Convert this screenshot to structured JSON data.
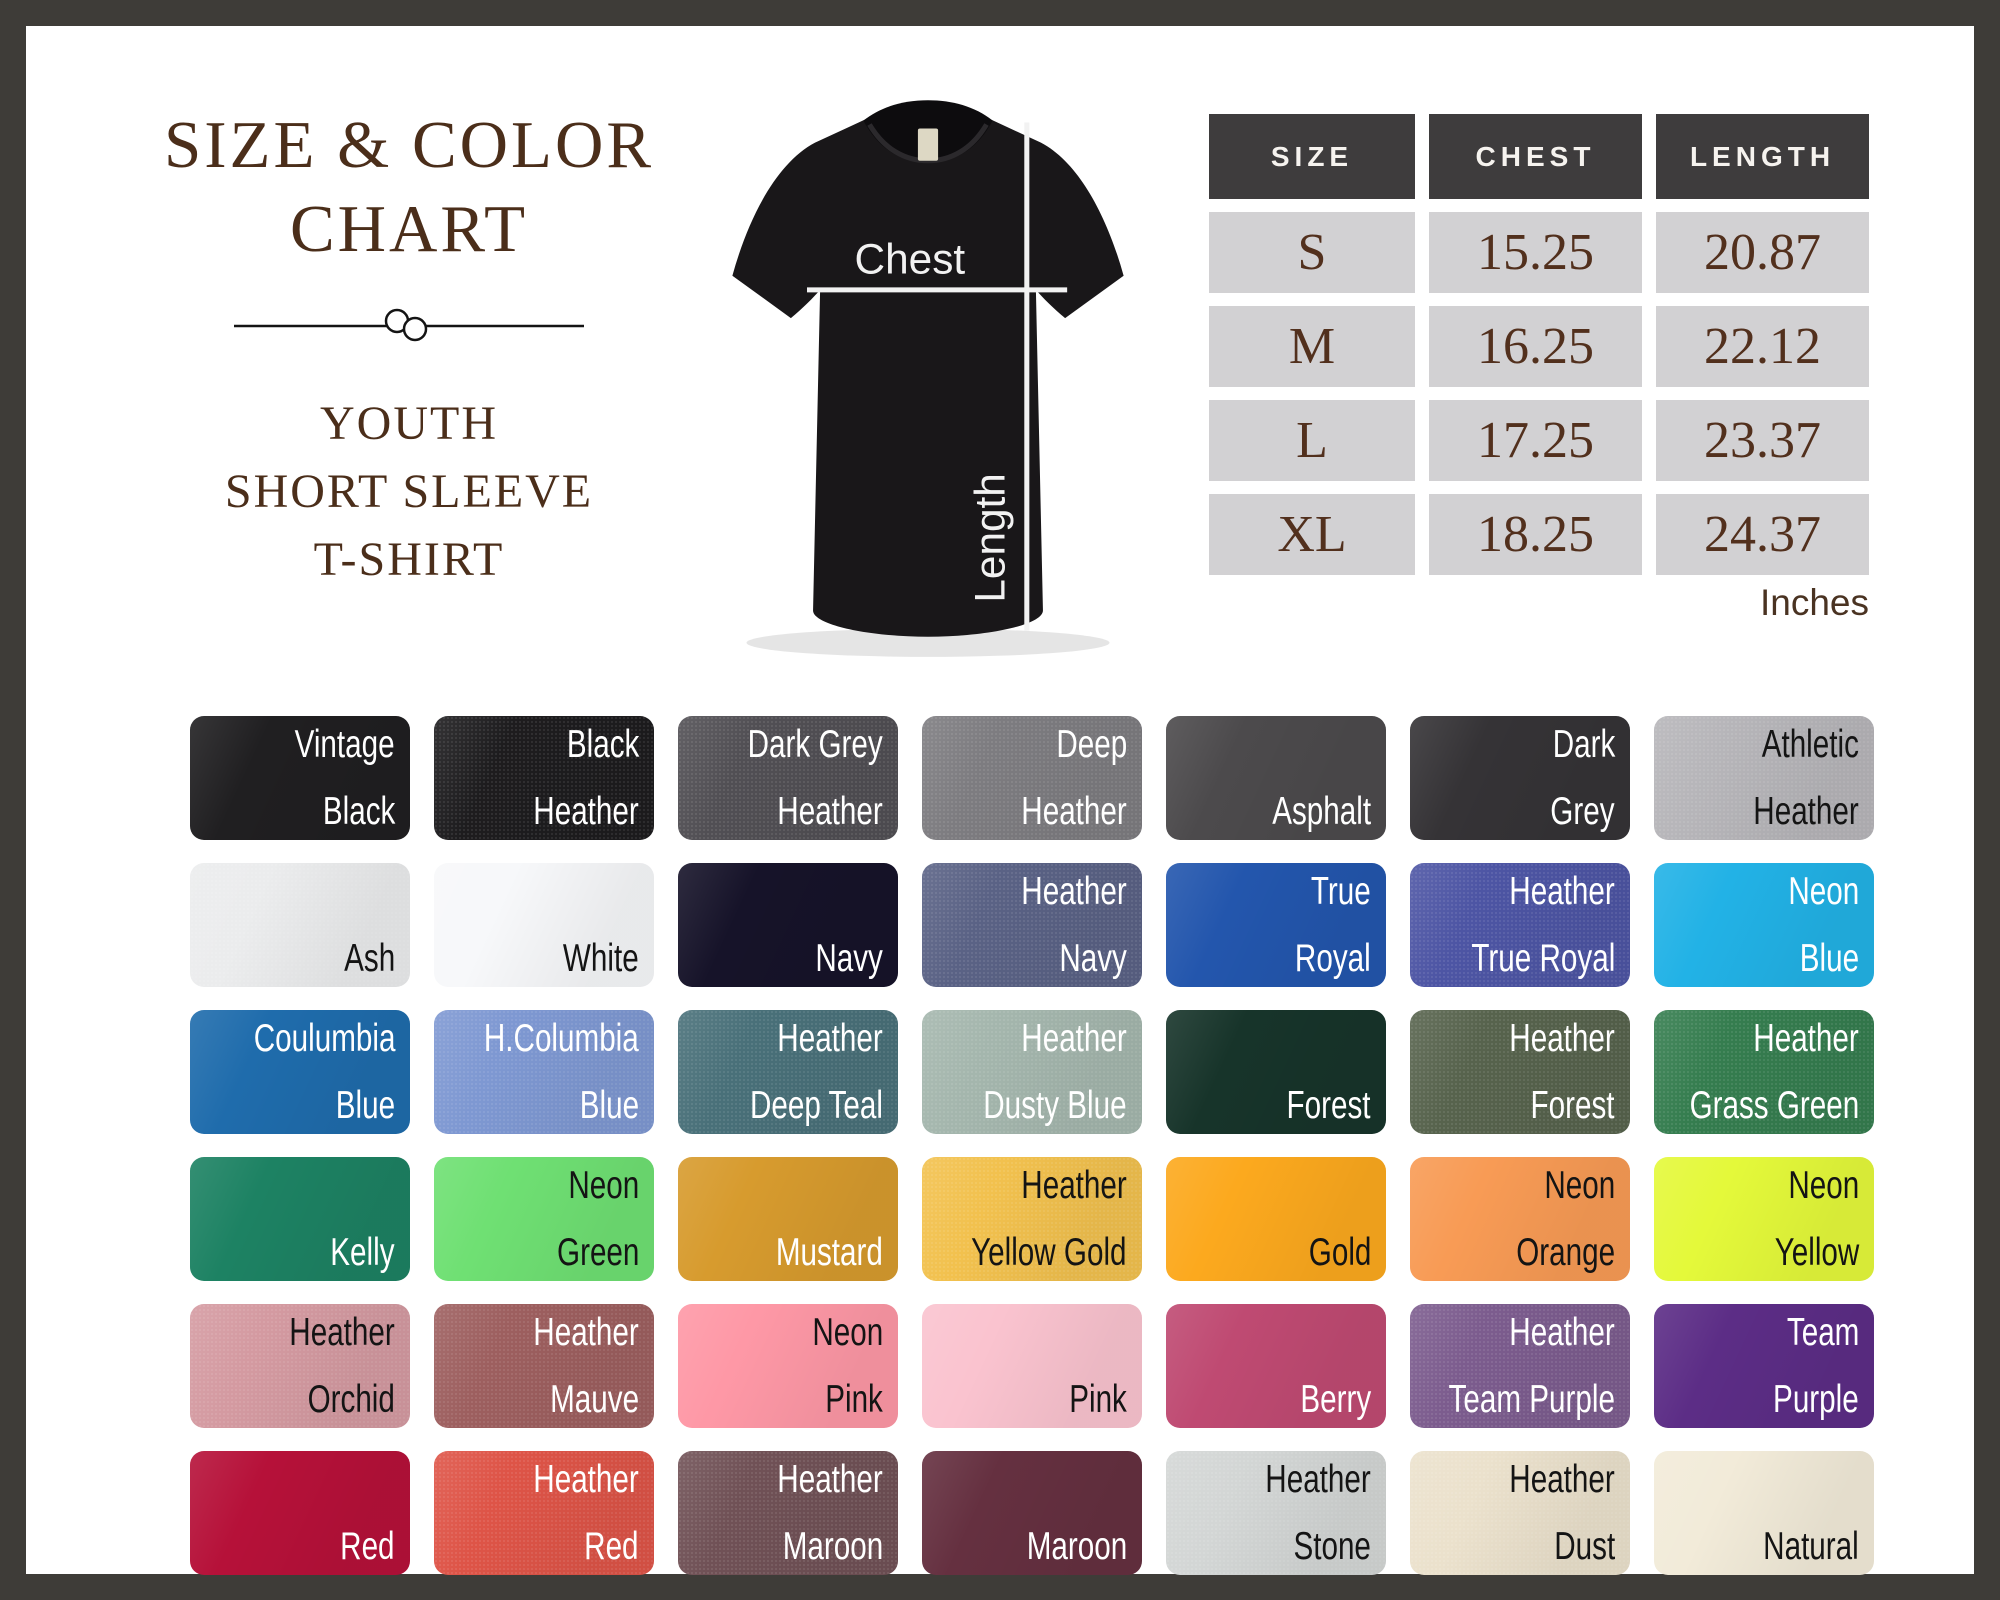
{
  "frame": {
    "border_color": "#3e3c38",
    "background": "#ffffff"
  },
  "title_block": {
    "line1": "SIZE & COLOR",
    "line2": "CHART",
    "subtitle": [
      "YOUTH",
      "SHORT SLEEVE",
      "T-SHIRT"
    ],
    "text_color": "#4b2e1a"
  },
  "shirt_diagram": {
    "chest_label": "Chest",
    "length_label": "Length",
    "shirt_color": "#191719",
    "line_color": "#f2f2f2"
  },
  "size_table": {
    "headers": [
      "SIZE",
      "CHEST",
      "LENGTH"
    ],
    "rows": [
      [
        "S",
        "15.25",
        "20.87"
      ],
      [
        "M",
        "16.25",
        "22.12"
      ],
      [
        "L",
        "17.25",
        "23.37"
      ],
      [
        "XL",
        "18.25",
        "24.37"
      ]
    ],
    "unit": "Inches",
    "header_bg": "#3e3c3d",
    "header_text": "#f6f3ef",
    "cell_bg": "#d2d1d3",
    "cell_text": "#52301d"
  },
  "swatches": [
    {
      "name": "Vintage Black",
      "lines": [
        "Vintage",
        "Black"
      ],
      "bg": "#201f21",
      "fg": "#ffffff",
      "heather": false
    },
    {
      "name": "Black Heather",
      "lines": [
        "Black",
        "Heather"
      ],
      "bg": "#1d1c1e",
      "fg": "#ffffff",
      "heather": true
    },
    {
      "name": "Dark Grey Heather",
      "lines": [
        "Dark Grey",
        "Heather"
      ],
      "bg": "#514f54",
      "fg": "#ffffff",
      "heather": true
    },
    {
      "name": "Deep Heather",
      "lines": [
        "Deep",
        "Heather"
      ],
      "bg": "#7d7c80",
      "fg": "#ffffff",
      "heather": true
    },
    {
      "name": "Asphalt",
      "lines": [
        "Asphalt"
      ],
      "bg": "#4c4a4c",
      "fg": "#ffffff",
      "heather": false
    },
    {
      "name": "Dark Grey",
      "lines": [
        "Dark",
        "Grey"
      ],
      "bg": "#353336",
      "fg": "#ffffff",
      "heather": false
    },
    {
      "name": "Athletic Heather",
      "lines": [
        "Athletic",
        "Heather"
      ],
      "bg": "#b6b5b9",
      "fg": "#141414",
      "heather": true
    },
    {
      "name": "Ash",
      "lines": [
        "Ash"
      ],
      "bg": "#ebeced",
      "fg": "#141414",
      "heather": true
    },
    {
      "name": "White",
      "lines": [
        "White"
      ],
      "bg": "#f7f8fa",
      "fg": "#141414",
      "heather": false
    },
    {
      "name": "Navy",
      "lines": [
        "Navy"
      ],
      "bg": "#161329",
      "fg": "#ffffff",
      "heather": false
    },
    {
      "name": "Heather Navy",
      "lines": [
        "Heather",
        "Navy"
      ],
      "bg": "#5a6285",
      "fg": "#ffffff",
      "heather": true
    },
    {
      "name": "True Royal",
      "lines": [
        "True",
        "Royal"
      ],
      "bg": "#2356ad",
      "fg": "#ffffff",
      "heather": false
    },
    {
      "name": "Heather True Royal",
      "lines": [
        "Heather",
        "True Royal"
      ],
      "bg": "#4d55a4",
      "fg": "#ffffff",
      "heather": true
    },
    {
      "name": "Neon Blue",
      "lines": [
        "Neon",
        "Blue"
      ],
      "bg": "#22b2e6",
      "fg": "#ffffff",
      "heather": false
    },
    {
      "name": "Coulumbia Blue",
      "lines": [
        "Coulumbia",
        "Blue"
      ],
      "bg": "#1f6cac",
      "fg": "#ffffff",
      "heather": false
    },
    {
      "name": "H.Columbia Blue",
      "lines": [
        "H.Columbia",
        "Blue"
      ],
      "bg": "#7e98d2",
      "fg": "#ffffff",
      "heather": true
    },
    {
      "name": "Heather Deep Teal",
      "lines": [
        "Heather",
        "Deep Teal"
      ],
      "bg": "#497079",
      "fg": "#ffffff",
      "heather": true
    },
    {
      "name": "Heather Dusty Blue",
      "lines": [
        "Heather",
        "Dusty Blue"
      ],
      "bg": "#a4b6ad",
      "fg": "#ffffff",
      "heather": true
    },
    {
      "name": "Forest",
      "lines": [
        "Forest"
      ],
      "bg": "#17342a",
      "fg": "#ffffff",
      "heather": false
    },
    {
      "name": "Heather Forest",
      "lines": [
        "Heather",
        "Forest"
      ],
      "bg": "#57634d",
      "fg": "#ffffff",
      "heather": true
    },
    {
      "name": "Heather Grass Green",
      "lines": [
        "Heather",
        "Grass Green"
      ],
      "bg": "#357d4f",
      "fg": "#ffffff",
      "heather": true
    },
    {
      "name": "Kelly",
      "lines": [
        "Kelly"
      ],
      "bg": "#1d8263",
      "fg": "#ffffff",
      "heather": false
    },
    {
      "name": "Neon Green",
      "lines": [
        "Neon",
        "Green"
      ],
      "bg": "#6fe073",
      "fg": "#141414",
      "heather": false
    },
    {
      "name": "Mustard",
      "lines": [
        "Mustard"
      ],
      "bg": "#d79b2e",
      "fg": "#ffffff",
      "heather": false
    },
    {
      "name": "Heather Yellow Gold",
      "lines": [
        "Heather",
        "Yellow Gold"
      ],
      "bg": "#f2c14e",
      "fg": "#141414",
      "heather": true
    },
    {
      "name": "Gold",
      "lines": [
        "Gold"
      ],
      "bg": "#fca91e",
      "fg": "#141414",
      "heather": false
    },
    {
      "name": "Neon Orange",
      "lines": [
        "Neon",
        "Orange"
      ],
      "bg": "#f89b55",
      "fg": "#141414",
      "heather": false
    },
    {
      "name": "Neon Yellow",
      "lines": [
        "Neon",
        "Yellow"
      ],
      "bg": "#e4f93a",
      "fg": "#141414",
      "heather": false
    },
    {
      "name": "Heather Orchid",
      "lines": [
        "Heather",
        "Orchid"
      ],
      "bg": "#d49aa1",
      "fg": "#141414",
      "heather": true
    },
    {
      "name": "Heather Mauve",
      "lines": [
        "Heather",
        "Mauve"
      ],
      "bg": "#9d5f5f",
      "fg": "#ffffff",
      "heather": true
    },
    {
      "name": "Neon Pink",
      "lines": [
        "Neon",
        "Pink"
      ],
      "bg": "#fe98a6",
      "fg": "#141414",
      "heather": false
    },
    {
      "name": "Pink",
      "lines": [
        "Pink"
      ],
      "bg": "#fac3cf",
      "fg": "#141414",
      "heather": false
    },
    {
      "name": "Berry",
      "lines": [
        "Berry"
      ],
      "bg": "#bf4a72",
      "fg": "#ffffff",
      "heather": false
    },
    {
      "name": "Heather Team Purple",
      "lines": [
        "Heather",
        "Team Purple"
      ],
      "bg": "#7c5c8e",
      "fg": "#ffffff",
      "heather": true
    },
    {
      "name": "Team Purple",
      "lines": [
        "Team",
        "Purple"
      ],
      "bg": "#5c2d86",
      "fg": "#ffffff",
      "heather": false
    },
    {
      "name": "Red",
      "lines": [
        "Red"
      ],
      "bg": "#b61139",
      "fg": "#ffffff",
      "heather": false
    },
    {
      "name": "Heather Red",
      "lines": [
        "Heather",
        "Red"
      ],
      "bg": "#de5447",
      "fg": "#ffffff",
      "heather": true
    },
    {
      "name": "Heather Maroon",
      "lines": [
        "Heather",
        "Maroon"
      ],
      "bg": "#705156",
      "fg": "#ffffff",
      "heather": true
    },
    {
      "name": "Maroon",
      "lines": [
        "Maroon"
      ],
      "bg": "#653040",
      "fg": "#ffffff",
      "heather": false
    },
    {
      "name": "Heather Stone",
      "lines": [
        "Heather",
        "Stone"
      ],
      "bg": "#d3d6d5",
      "fg": "#141414",
      "heather": true
    },
    {
      "name": "Heather Dust",
      "lines": [
        "Heather",
        "Dust"
      ],
      "bg": "#ebe1cc",
      "fg": "#141414",
      "heather": true
    },
    {
      "name": "Natural",
      "lines": [
        "Natural"
      ],
      "bg": "#f2ebd9",
      "fg": "#141414",
      "heather": false
    }
  ]
}
